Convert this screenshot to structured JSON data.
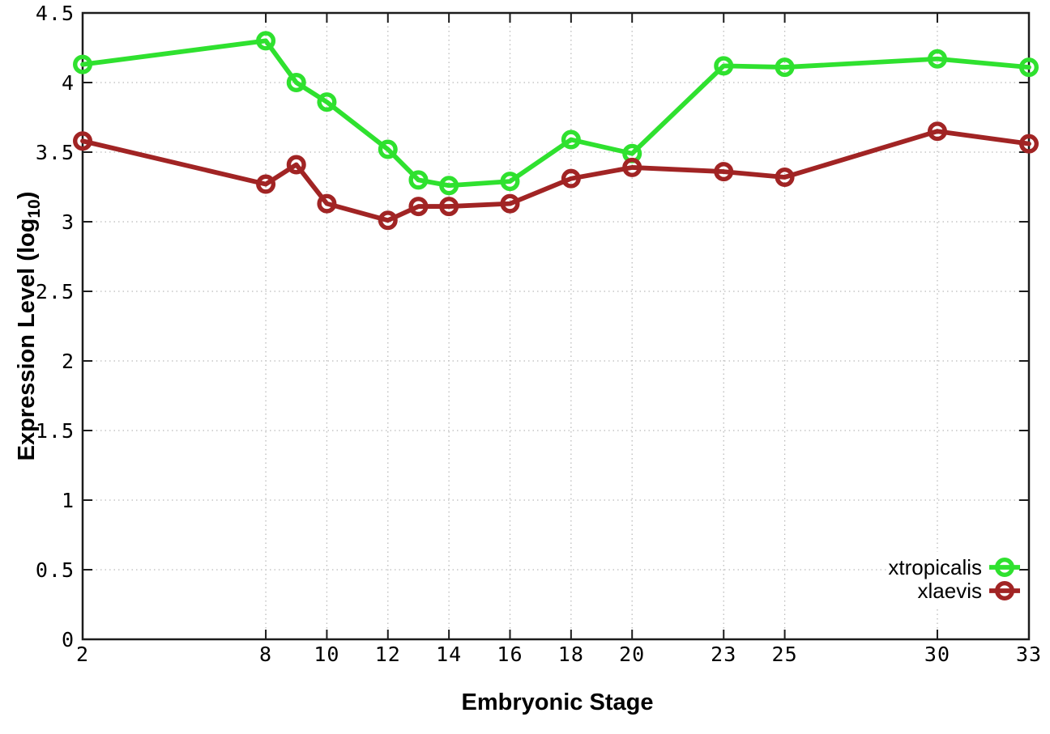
{
  "chart_data": {
    "type": "line",
    "x": [
      2,
      8,
      9,
      10,
      12,
      13,
      14,
      16,
      18,
      20,
      23,
      25,
      30,
      33
    ],
    "series": [
      {
        "name": "xtropicalis",
        "color": "#2fe12f",
        "values": [
          4.13,
          4.3,
          4.0,
          3.86,
          3.52,
          3.3,
          3.26,
          3.29,
          3.59,
          3.49,
          4.12,
          4.11,
          4.17,
          4.11
        ]
      },
      {
        "name": "xlaevis",
        "color": "#a12424",
        "values": [
          3.58,
          3.27,
          3.41,
          3.13,
          3.01,
          3.11,
          3.11,
          3.13,
          3.31,
          3.39,
          3.36,
          3.32,
          3.65,
          3.56
        ]
      }
    ],
    "xlabel": "Embryonic Stage",
    "ylabel": "Expression Level (log10)",
    "ylabel_rich": {
      "pre": "Expression Level (log",
      "sub": "10",
      "post": ")"
    },
    "xlim": [
      2,
      33
    ],
    "ylim": [
      0,
      4.5
    ],
    "x_ticks": [
      2,
      8,
      10,
      12,
      14,
      16,
      18,
      20,
      23,
      25,
      30,
      33
    ],
    "y_ticks": [
      0,
      0.5,
      1,
      1.5,
      2,
      2.5,
      3,
      3.5,
      4,
      4.5
    ],
    "grid": true,
    "grid_style": "dotted",
    "legend_position": "inside-bottom-right",
    "legend_entries": [
      "xtropicalis",
      "xlaevis"
    ],
    "marker": "open-circle",
    "colors": {
      "background": "#ffffff",
      "border": "#1c1c1c",
      "grid": "#bbbbbb",
      "text": "#000000",
      "xtropicalis": "#2fe12f",
      "xlaevis": "#a12424"
    }
  }
}
